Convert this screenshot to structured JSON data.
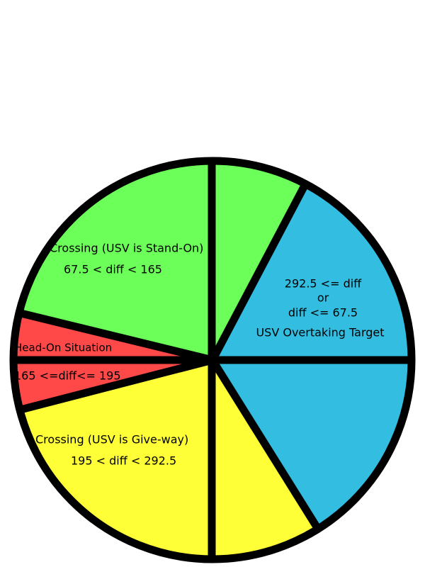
{
  "sectors": [
    {
      "label": "Crossing (USV is Stand-On)",
      "condition": "67.5 < diff < 165"
    },
    {
      "lines": [
        "292.5 <= diff",
        "or",
        "diff <= 67.5",
        "USV Overtaking Target"
      ]
    },
    {
      "label": "Crossing (USV is Give-way)",
      "condition": "195 < diff < 292.5"
    },
    {
      "label": "Head-On Situation",
      "condition": "165 <=diff<= 195"
    }
  ]
}
